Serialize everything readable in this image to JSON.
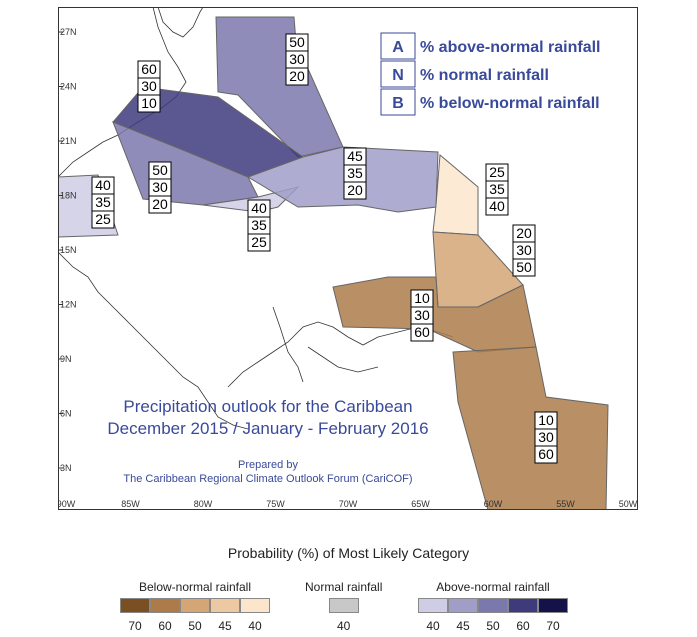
{
  "map": {
    "lat_ticks": [
      "27N",
      "24N",
      "21N",
      "18N",
      "15N",
      "12N",
      "9N",
      "6N",
      "3N"
    ],
    "lon_ticks": [
      "90W",
      "85W",
      "80W",
      "75W",
      "70W",
      "65W",
      "60W",
      "55W",
      "50W"
    ],
    "title_line1": "Precipitation outlook for the Caribbean",
    "title_line2": "December 2015 / January - February 2016",
    "prepared_line1": "Prepared by",
    "prepared_line2": "The Caribbean Regional Climate Outlook Forum (CariCOF)",
    "key": [
      {
        "letter": "A",
        "text": "% above-normal rainfall"
      },
      {
        "letter": "N",
        "text": "% normal rainfall"
      },
      {
        "letter": "B",
        "text": "% below-normal rainfall"
      }
    ],
    "regions": [
      {
        "name": "bahamas",
        "above": "50",
        "normal": "30",
        "below": "20",
        "color": "#7b78ad"
      },
      {
        "name": "cuba-jamaica-north",
        "above": "60",
        "normal": "30",
        "below": "10",
        "color": "#3e3a7c"
      },
      {
        "name": "belize-honduras",
        "above": "40",
        "normal": "35",
        "below": "25",
        "color": "#cfcde5"
      },
      {
        "name": "jamaica",
        "above": "50",
        "normal": "30",
        "below": "20",
        "color": "#7b78ad"
      },
      {
        "name": "caribbean-sea",
        "above": "40",
        "normal": "35",
        "below": "25",
        "color": "#cfcde5"
      },
      {
        "name": "hispaniola-puerto-rico",
        "above": "45",
        "normal": "35",
        "below": "20",
        "color": "#a09ec8"
      },
      {
        "name": "leeward-islands",
        "above": "25",
        "normal": "35",
        "below": "40",
        "color": "#fbe6cc"
      },
      {
        "name": "windward-islands",
        "above": "20",
        "normal": "30",
        "below": "50",
        "color": "#d4a676"
      },
      {
        "name": "southern-caribbean",
        "above": "10",
        "normal": "30",
        "below": "60",
        "color": "#ad7b4a"
      },
      {
        "name": "guianas",
        "above": "10",
        "normal": "30",
        "below": "60",
        "color": "#ad7b4a"
      }
    ]
  },
  "scale": {
    "title": "Probability (%) of Most Likely Category",
    "below": {
      "label": "Below-normal rainfall",
      "colors": [
        "#7a4f22",
        "#ad7b4a",
        "#d4a676",
        "#ecc9a3",
        "#fbe6cc"
      ],
      "values": [
        "70",
        "60",
        "50",
        "45",
        "40"
      ]
    },
    "normal": {
      "label": "Normal rainfall",
      "colors": [
        "#c8c8c8"
      ],
      "values": [
        "40"
      ]
    },
    "above": {
      "label": "Above-normal rainfall",
      "colors": [
        "#cfcde5",
        "#a09ec8",
        "#7b78ad",
        "#3e3a7c",
        "#15124a"
      ],
      "values": [
        "40",
        "45",
        "50",
        "60",
        "70"
      ]
    }
  }
}
